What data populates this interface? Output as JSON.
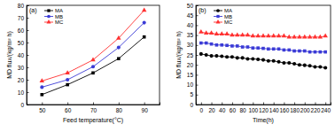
{
  "chart_data": [
    {
      "type": "line",
      "title": "(a)",
      "x_label": "Feed temperature(°C)",
      "y_label": "MD flux/(kg/m² h)",
      "x": [
        50,
        60,
        70,
        80,
        90
      ],
      "series": [
        {
          "name": "MA",
          "color": "#000000",
          "marker": "square",
          "values": [
            8,
            16,
            25.5,
            37,
            54.5
          ]
        },
        {
          "name": "MB",
          "color": "#3b3bd6",
          "marker": "circle",
          "values": [
            14,
            20,
            30.5,
            46,
            66
          ]
        },
        {
          "name": "MC",
          "color": "#ff3030",
          "marker": "triangle",
          "values": [
            19,
            25.5,
            36,
            53.5,
            76
          ]
        }
      ],
      "xlim": [
        44,
        96
      ],
      "xticks": [
        50,
        60,
        70,
        80,
        90
      ],
      "ylim": [
        0,
        80
      ],
      "yticks": [
        0,
        10,
        20,
        30,
        40,
        50,
        60,
        70,
        80
      ],
      "legend": "upper left"
    },
    {
      "type": "line",
      "title": "(b)",
      "x_label": "Time(h)",
      "y_label": "MD flux/(kg/m² h)",
      "x": [
        0,
        10,
        20,
        30,
        40,
        50,
        60,
        70,
        80,
        90,
        100,
        110,
        120,
        130,
        140,
        150,
        160,
        170,
        180,
        190,
        200,
        210,
        220,
        230,
        240
      ],
      "series": [
        {
          "name": "MA",
          "color": "#000000",
          "marker": "circle",
          "values": [
            25.5,
            25,
            24.5,
            24.5,
            24.3,
            24,
            24,
            23.5,
            23.5,
            23,
            23,
            22.8,
            22.5,
            22,
            22,
            21.5,
            21,
            21,
            20.5,
            20,
            19.8,
            19.5,
            19,
            19,
            18.5
          ]
        },
        {
          "name": "MB",
          "color": "#3b3bd6",
          "marker": "square",
          "values": [
            31,
            31,
            30.5,
            30,
            30,
            29.8,
            29.5,
            29.5,
            29,
            29,
            28.5,
            28.5,
            28.3,
            28,
            28,
            28,
            27.5,
            27.5,
            27,
            27,
            27,
            26.5,
            26.5,
            26.5,
            26.5
          ]
        },
        {
          "name": "MC",
          "color": "#ff3030",
          "marker": "triangle",
          "values": [
            36.5,
            36,
            36,
            35.5,
            35.5,
            35.5,
            35,
            35,
            35,
            35,
            34.5,
            34.5,
            34.5,
            34.5,
            34.5,
            34.5,
            34.5,
            34,
            34,
            34,
            34,
            34,
            34,
            34,
            34.5
          ]
        }
      ],
      "xlim": [
        -10,
        250
      ],
      "xticks": [
        0,
        20,
        40,
        60,
        80,
        100,
        120,
        140,
        160,
        180,
        200,
        220,
        240
      ],
      "ylim": [
        0,
        50
      ],
      "yticks": [
        0,
        5,
        10,
        15,
        20,
        25,
        30,
        35,
        40,
        45,
        50
      ],
      "legend": "upper left"
    }
  ]
}
